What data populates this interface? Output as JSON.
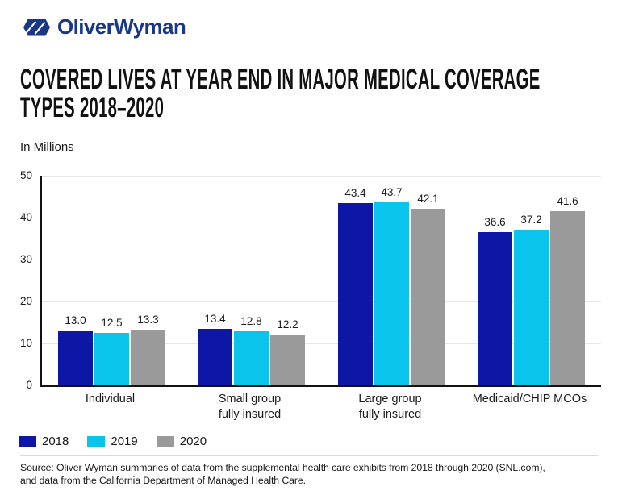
{
  "brand": {
    "logo_text": "OliverWyman",
    "brand_color": "#193787"
  },
  "title": "COVERED LIVES AT YEAR END IN MAJOR MEDICAL COVERAGE\nTYPES 2018–2020",
  "source": "Source: Oliver Wyman summaries of data from the supplemental health care exhibits from 2018 through 2020 (SNL.com),\nand data from the California Department of Managed Health Care.",
  "chart_data": {
    "type": "bar",
    "title": "Covered lives at year end in major medical coverage types 2018–2020",
    "ylabel": "In Millions",
    "categories": [
      "Individual",
      "Small group\nfully insured",
      "Large group\nfully insured",
      "Medicaid/CHIP MCOs"
    ],
    "series": [
      {
        "name": "2018",
        "color": "#0e17a5",
        "values": [
          13.0,
          13.4,
          43.4,
          36.6
        ]
      },
      {
        "name": "2019",
        "color": "#0bc4ec",
        "values": [
          12.5,
          12.8,
          43.7,
          37.2
        ]
      },
      {
        "name": "2020",
        "color": "#9a9a9a",
        "values": [
          13.3,
          12.2,
          42.1,
          41.6
        ]
      }
    ],
    "ylim": [
      0,
      50
    ],
    "yticks": [
      0,
      10,
      20,
      30,
      40,
      50
    ],
    "grid": true,
    "value_labels": true,
    "value_decimals": 1,
    "legend_position": "bottom"
  }
}
